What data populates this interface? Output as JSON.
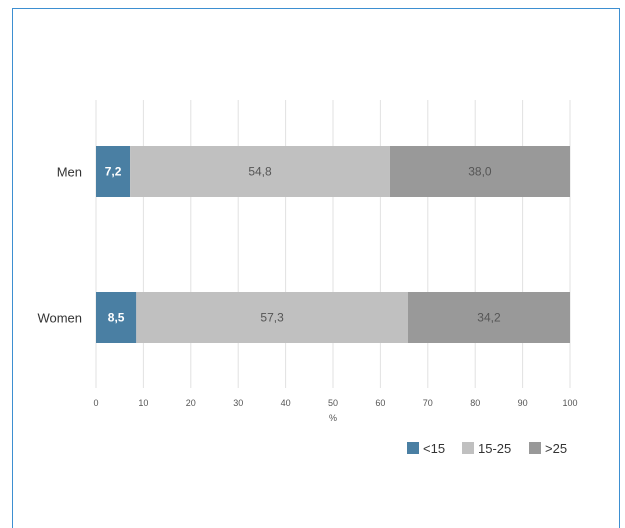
{
  "chart_data": {
    "type": "bar",
    "orientation": "horizontal",
    "stacked": true,
    "categories": [
      "Men",
      "Women"
    ],
    "series": [
      {
        "name": "<15",
        "values": [
          7.2,
          8.5
        ],
        "labels": [
          "7,2",
          "8,5"
        ],
        "color": "#4a7fa3"
      },
      {
        "name": "15-25",
        "values": [
          54.8,
          57.3
        ],
        "labels": [
          "54,8",
          "57,3"
        ],
        "color": "#c0c0c0"
      },
      {
        "name": ">25",
        "values": [
          38.0,
          34.2
        ],
        "labels": [
          "38,0",
          "34,2"
        ],
        "color": "#999999"
      }
    ],
    "xlabel": "%",
    "xlim": [
      0,
      100
    ],
    "xticks": [
      0,
      10,
      20,
      30,
      40,
      50,
      60,
      70,
      80,
      90,
      100
    ],
    "grid": true,
    "legend": "bottom-right"
  }
}
